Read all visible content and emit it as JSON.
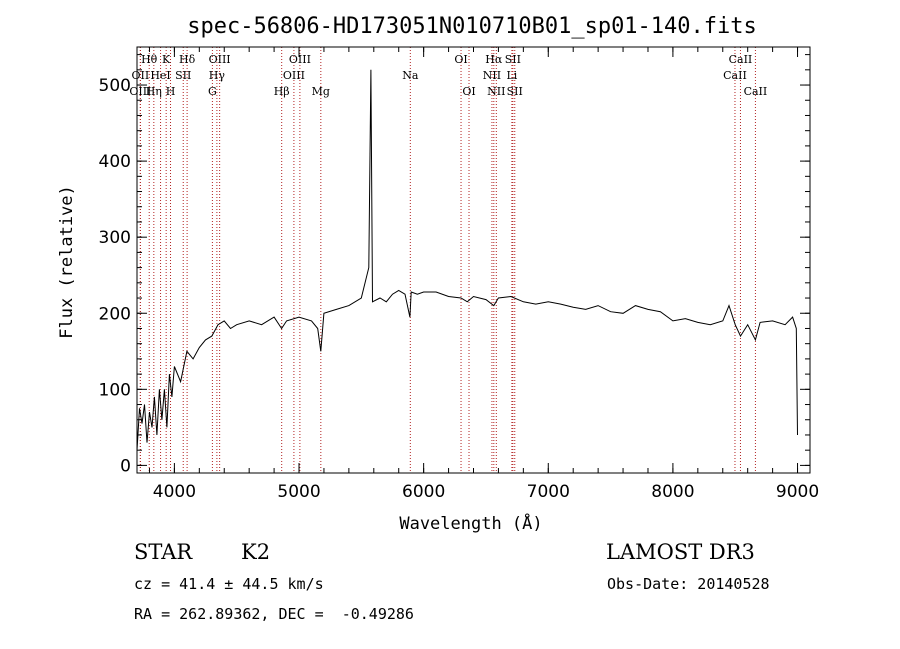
{
  "chart_data": {
    "type": "line",
    "title": "spec-56806-HD173051N010710B01_sp01-140.fits",
    "xlabel": "Wavelength (Å)",
    "ylabel": "Flux (relative)",
    "xlim": [
      3700,
      9100
    ],
    "ylim": [
      -10,
      550
    ],
    "x_ticks": [
      4000,
      5000,
      6000,
      7000,
      8000,
      9000
    ],
    "y_ticks": [
      0,
      100,
      200,
      300,
      400,
      500
    ],
    "x_minor_step": 200,
    "y_minor_step": 20,
    "series": [
      {
        "name": "flux",
        "color": "#000000",
        "x": [
          3700,
          3720,
          3740,
          3760,
          3780,
          3800,
          3820,
          3840,
          3860,
          3880,
          3900,
          3920,
          3940,
          3960,
          3980,
          4000,
          4050,
          4100,
          4150,
          4200,
          4250,
          4300,
          4350,
          4400,
          4450,
          4500,
          4600,
          4700,
          4800,
          4860,
          4900,
          5000,
          5100,
          5150,
          5175,
          5200,
          5300,
          5400,
          5500,
          5560,
          5577,
          5590,
          5650,
          5700,
          5750,
          5800,
          5850,
          5890,
          5900,
          5950,
          6000,
          6100,
          6200,
          6300,
          6350,
          6400,
          6500,
          6563,
          6600,
          6700,
          6800,
          6900,
          7000,
          7100,
          7200,
          7300,
          7400,
          7500,
          7600,
          7700,
          7800,
          7900,
          8000,
          8100,
          8200,
          8300,
          8400,
          8450,
          8500,
          8542,
          8600,
          8662,
          8700,
          8800,
          8900,
          8960,
          8990,
          9000
        ],
        "y": [
          20,
          75,
          55,
          80,
          30,
          70,
          50,
          90,
          40,
          100,
          60,
          100,
          50,
          120,
          90,
          130,
          110,
          150,
          140,
          155,
          165,
          170,
          185,
          190,
          180,
          185,
          190,
          185,
          195,
          180,
          190,
          195,
          190,
          180,
          150,
          200,
          205,
          210,
          220,
          260,
          520,
          215,
          220,
          215,
          225,
          230,
          225,
          195,
          228,
          225,
          228,
          228,
          222,
          220,
          215,
          222,
          218,
          210,
          220,
          222,
          215,
          212,
          215,
          212,
          208,
          205,
          210,
          202,
          200,
          210,
          205,
          202,
          190,
          193,
          188,
          185,
          190,
          210,
          185,
          170,
          185,
          165,
          188,
          190,
          185,
          195,
          180,
          40
        ]
      }
    ],
    "spectral_lines": [
      {
        "name": "Hθ",
        "x": 3798,
        "row": 0
      },
      {
        "name": "OII",
        "x": 3727,
        "row": 1
      },
      {
        "name": "OIII",
        "x": 3727,
        "row": 2
      },
      {
        "name": "Hη",
        "x": 3835,
        "row": 2
      },
      {
        "name": "K",
        "x": 3934,
        "row": 0
      },
      {
        "name": "HeI",
        "x": 3889,
        "row": 1
      },
      {
        "name": "SII",
        "x": 4071,
        "row": 1
      },
      {
        "name": "H",
        "x": 3969,
        "row": 2
      },
      {
        "name": "Hδ",
        "x": 4102,
        "row": 0
      },
      {
        "name": "OIII",
        "x": 4363,
        "row": 0
      },
      {
        "name": "Hγ",
        "x": 4341,
        "row": 1
      },
      {
        "name": "G",
        "x": 4305,
        "row": 2
      },
      {
        "name": "Hβ",
        "x": 4861,
        "row": 2
      },
      {
        "name": "OIII",
        "x": 5007,
        "row": 0
      },
      {
        "name": "OIII",
        "x": 4959,
        "row": 1
      },
      {
        "name": "Mg",
        "x": 5175,
        "row": 2
      },
      {
        "name": "Na",
        "x": 5893,
        "row": 1
      },
      {
        "name": "OI",
        "x": 6300,
        "row": 0
      },
      {
        "name": "OI",
        "x": 6364,
        "row": 2
      },
      {
        "name": "Hα",
        "x": 6563,
        "row": 0
      },
      {
        "name": "SII",
        "x": 6716,
        "row": 0
      },
      {
        "name": "NII",
        "x": 6548,
        "row": 1
      },
      {
        "name": "Li",
        "x": 6708,
        "row": 1
      },
      {
        "name": "NII",
        "x": 6583,
        "row": 2
      },
      {
        "name": "SII",
        "x": 6731,
        "row": 2
      },
      {
        "name": "CaII",
        "x": 8542,
        "row": 0
      },
      {
        "name": "CaII",
        "x": 8498,
        "row": 1
      },
      {
        "name": "CaII",
        "x": 8662,
        "row": 2
      }
    ]
  },
  "info": {
    "object_class": "STAR",
    "subclass": "K2",
    "survey": "LAMOST DR3",
    "redshift": "cz = 41.4 ± 44.5 km/s",
    "obs_date": "Obs-Date: 20140528",
    "coords": "RA = 262.89362, DEC =  -0.49286"
  }
}
